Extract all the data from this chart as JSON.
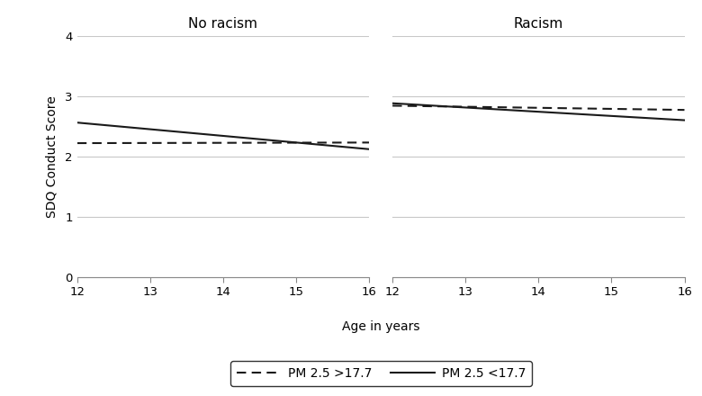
{
  "no_racism": {
    "ages": [
      12,
      16
    ],
    "dashed_values": [
      2.22,
      2.23
    ],
    "solid_values": [
      2.56,
      2.12
    ]
  },
  "racism": {
    "ages": [
      12,
      16
    ],
    "dashed_values": [
      2.84,
      2.77
    ],
    "solid_values": [
      2.88,
      2.6
    ]
  },
  "ylim": [
    0,
    4
  ],
  "yticks": [
    0,
    1,
    2,
    3,
    4
  ],
  "xticks": [
    12,
    13,
    14,
    15,
    16
  ],
  "xlabel": "Age in years",
  "ylabel": "SDQ Conduct Score",
  "panel_titles": [
    "No racism",
    "Racism"
  ],
  "legend_labels": [
    "PM 2.5 >17.7",
    "PM 2.5 <17.7"
  ],
  "line_color": "#1a1a1a",
  "grid_color": "#c8c8c8",
  "background_color": "#ffffff",
  "title_fontsize": 11,
  "label_fontsize": 10,
  "tick_fontsize": 9.5,
  "legend_fontsize": 10,
  "line_width": 1.5,
  "dashed_pattern": [
    5,
    3
  ],
  "fig_facecolor": "#ffffff",
  "spine_color": "#888888"
}
